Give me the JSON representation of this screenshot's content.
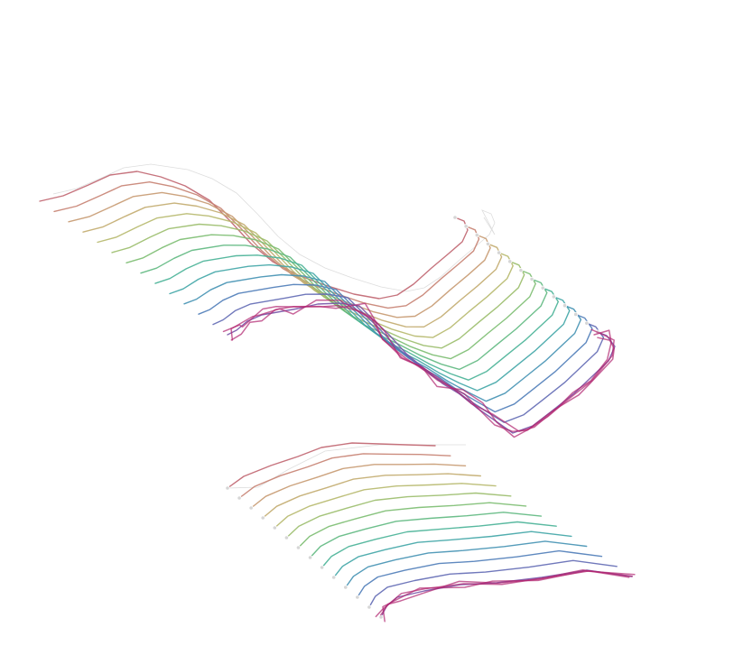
{
  "figure": {
    "palette": [
      "#c0646f",
      "#c88a72",
      "#c6a56f",
      "#b9b86c",
      "#94bd6a",
      "#6bbb74",
      "#49b393",
      "#3ea4a8",
      "#4488b8",
      "#5a6fb8",
      "#7755a8"
    ],
    "noise_color": "#b0246f",
    "ghost_color": "#cfcfcf",
    "upper_panel": {
      "stroke_count": 14
    },
    "lower_panel": {
      "stroke_count": 14
    }
  }
}
